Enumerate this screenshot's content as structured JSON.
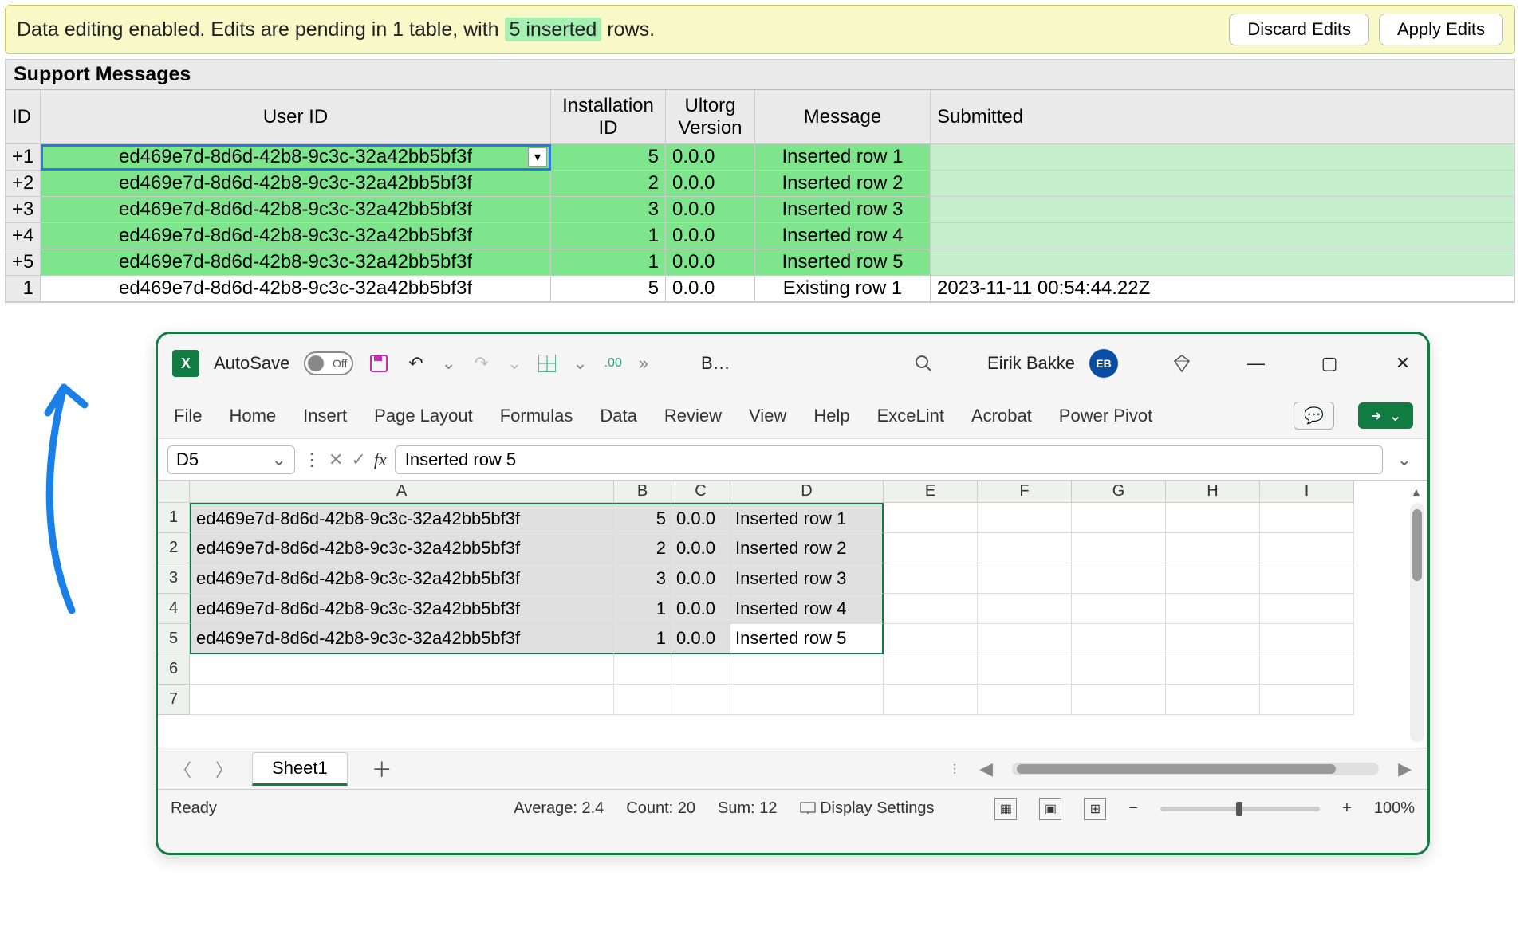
{
  "banner": {
    "text_pre": "Data editing enabled. Edits are pending in 1 table, with ",
    "highlight": "5 inserted",
    "text_post": " rows.",
    "discard": "Discard Edits",
    "apply": "Apply Edits",
    "bg": "#f9f9c8",
    "highlight_bg": "#a5efb2"
  },
  "sm": {
    "title": "Support Messages",
    "headers": {
      "id": "ID",
      "user_id": "User ID",
      "inst_id": "Installation\nID",
      "version": "Ultorg\nVersion",
      "message": "Message",
      "submitted": "Submitted"
    },
    "rows": [
      {
        "id": "+1",
        "user_id": "ed469e7d-8d6d-42b8-9c3c-32a42bb5bf3f",
        "inst_id": "5",
        "version": "0.0.0",
        "message": "Inserted row 1",
        "submitted": "",
        "inserted": true,
        "selected": true
      },
      {
        "id": "+2",
        "user_id": "ed469e7d-8d6d-42b8-9c3c-32a42bb5bf3f",
        "inst_id": "2",
        "version": "0.0.0",
        "message": "Inserted row 2",
        "submitted": "",
        "inserted": true,
        "selected": false
      },
      {
        "id": "+3",
        "user_id": "ed469e7d-8d6d-42b8-9c3c-32a42bb5bf3f",
        "inst_id": "3",
        "version": "0.0.0",
        "message": "Inserted row 3",
        "submitted": "",
        "inserted": true,
        "selected": false
      },
      {
        "id": "+4",
        "user_id": "ed469e7d-8d6d-42b8-9c3c-32a42bb5bf3f",
        "inst_id": "1",
        "version": "0.0.0",
        "message": "Inserted row 4",
        "submitted": "",
        "inserted": true,
        "selected": false
      },
      {
        "id": "+5",
        "user_id": "ed469e7d-8d6d-42b8-9c3c-32a42bb5bf3f",
        "inst_id": "1",
        "version": "0.0.0",
        "message": "Inserted row 5",
        "submitted": "",
        "inserted": true,
        "selected": false
      },
      {
        "id": "1",
        "user_id": "ed469e7d-8d6d-42b8-9c3c-32a42bb5bf3f",
        "inst_id": "5",
        "version": "0.0.0",
        "message": "Existing row 1",
        "submitted": "2023-11-11 00:54:44.22Z",
        "inserted": false,
        "selected": false
      }
    ],
    "inserted_bg": "#7fe58c",
    "inserted_light_bg": "#c6f0cc",
    "selection_color": "#2b78e4"
  },
  "arrow": {
    "color": "#1a7fe6"
  },
  "excel": {
    "border_color": "#107c41",
    "title": {
      "autosave_label": "AutoSave",
      "autosave_state": "Off",
      "doc_initial": "B…",
      "user_name": "Eirik Bakke",
      "user_initials": "EB"
    },
    "ribbon": [
      "File",
      "Home",
      "Insert",
      "Page Layout",
      "Formulas",
      "Data",
      "Review",
      "View",
      "Help",
      "ExceLint",
      "Acrobat",
      "Power Pivot"
    ],
    "formula": {
      "name_box": "D5",
      "value": "Inserted row 5"
    },
    "columns": [
      "A",
      "B",
      "C",
      "D",
      "E",
      "F",
      "G",
      "H",
      "I"
    ],
    "rows": [
      {
        "n": "1",
        "A": "ed469e7d-8d6d-42b8-9c3c-32a42bb5bf3f",
        "B": "5",
        "C": "0.0.0",
        "D": "Inserted row 1"
      },
      {
        "n": "2",
        "A": "ed469e7d-8d6d-42b8-9c3c-32a42bb5bf3f",
        "B": "2",
        "C": "0.0.0",
        "D": "Inserted row 2"
      },
      {
        "n": "3",
        "A": "ed469e7d-8d6d-42b8-9c3c-32a42bb5bf3f",
        "B": "3",
        "C": "0.0.0",
        "D": "Inserted row 3"
      },
      {
        "n": "4",
        "A": "ed469e7d-8d6d-42b8-9c3c-32a42bb5bf3f",
        "B": "1",
        "C": "0.0.0",
        "D": "Inserted row 4"
      },
      {
        "n": "5",
        "A": "ed469e7d-8d6d-42b8-9c3c-32a42bb5bf3f",
        "B": "1",
        "C": "0.0.0",
        "D": "Inserted row 5"
      },
      {
        "n": "6",
        "A": "",
        "B": "",
        "C": "",
        "D": ""
      },
      {
        "n": "7",
        "A": "",
        "B": "",
        "C": "",
        "D": ""
      }
    ],
    "selection": {
      "from_row": 1,
      "to_row": 5,
      "from_col": "A",
      "to_col": "D",
      "active": "D5"
    },
    "tabs": {
      "sheet": "Sheet1"
    },
    "status": {
      "ready": "Ready",
      "average": "Average: 2.4",
      "count": "Count: 20",
      "sum": "Sum: 12",
      "display": "Display Settings",
      "zoom": "100%"
    }
  }
}
